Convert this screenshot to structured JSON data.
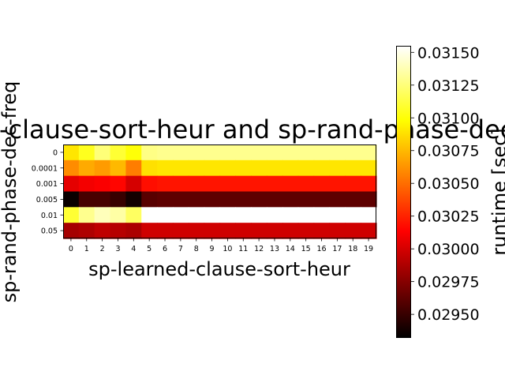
{
  "chart_data": {
    "type": "heatmap",
    "title": "sp-learned-clause-sort-heur and sp-rand-phase-dec-freq",
    "xlabel": "sp-learned-clause-sort-heur",
    "ylabel": "sp-rand-phase-dec-freq",
    "colorbar_label": "runtime [sec]",
    "x_categories": [
      "0",
      "1",
      "2",
      "3",
      "4",
      "5",
      "6",
      "7",
      "8",
      "9",
      "10",
      "11",
      "12",
      "13",
      "14",
      "15",
      "16",
      "17",
      "18",
      "19"
    ],
    "y_categories": [
      "0",
      "0.0001",
      "0.001",
      "0.005",
      "0.01",
      "0.05"
    ],
    "colormap": "hot",
    "vmin": 0.02932,
    "vmax": 0.03155,
    "colorbar_ticks": [
      "0.02950",
      "0.02975",
      "0.03000",
      "0.03025",
      "0.03050",
      "0.03075",
      "0.03100",
      "0.03125",
      "0.03150"
    ],
    "values": [
      [
        0.0309,
        0.03105,
        0.03125,
        0.0311,
        0.031,
        0.03128,
        0.0313,
        0.0313,
        0.0313,
        0.0313,
        0.0313,
        0.0313,
        0.0313,
        0.0313,
        0.0313,
        0.0313,
        0.0313,
        0.0313,
        0.0313,
        0.0313
      ],
      [
        0.0306,
        0.0307,
        0.03065,
        0.03075,
        0.03055,
        0.03088,
        0.0309,
        0.0309,
        0.0309,
        0.0309,
        0.0309,
        0.0309,
        0.0309,
        0.0309,
        0.0309,
        0.0309,
        0.0309,
        0.0309,
        0.0309,
        0.0309
      ],
      [
        0.03005,
        0.0301,
        0.03012,
        0.03015,
        0.03,
        0.03018,
        0.0302,
        0.0302,
        0.0302,
        0.0302,
        0.0302,
        0.0302,
        0.0302,
        0.0302,
        0.0302,
        0.0302,
        0.0302,
        0.0302,
        0.0302,
        0.0302
      ],
      [
        0.02935,
        0.02955,
        0.02955,
        0.0295,
        0.02938,
        0.0296,
        0.02962,
        0.02962,
        0.02962,
        0.02962,
        0.02962,
        0.02962,
        0.02962,
        0.02962,
        0.02962,
        0.02962,
        0.02962,
        0.02962,
        0.02962,
        0.02962
      ],
      [
        0.0311,
        0.0313,
        0.0314,
        0.03135,
        0.0312,
        0.03155,
        0.03155,
        0.03155,
        0.03155,
        0.03155,
        0.03155,
        0.03155,
        0.03155,
        0.03155,
        0.03155,
        0.03155,
        0.03155,
        0.03155,
        0.03155,
        0.03155
      ],
      [
        0.02985,
        0.02988,
        0.02993,
        0.0299,
        0.02987,
        0.02998,
        0.02998,
        0.02998,
        0.02998,
        0.02998,
        0.02998,
        0.02998,
        0.02998,
        0.02998,
        0.02998,
        0.02998,
        0.02998,
        0.02998,
        0.02998,
        0.02998
      ]
    ]
  }
}
